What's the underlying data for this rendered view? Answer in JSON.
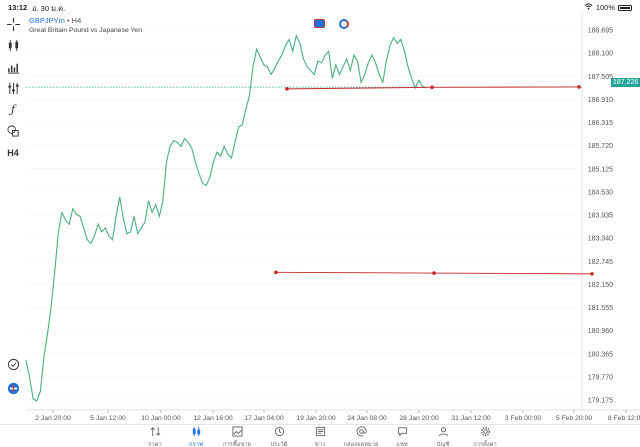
{
  "status_bar": {
    "time": "13:12",
    "date": "อ. 30 ม.ค.",
    "battery": "100%"
  },
  "chart": {
    "symbol": "GBPJPYm",
    "timeframe": "H4",
    "separator": "•",
    "description": "Great Britain Pound vs Japanese Yen",
    "current_price": "187.226",
    "timeframe_button": "H4"
  },
  "y_axis_labels": [
    "188.695",
    "188.100",
    "187.505",
    "186.910",
    "186.315",
    "185.720",
    "185.125",
    "184.530",
    "183.935",
    "183.340",
    "182.745",
    "182.150",
    "181.555",
    "180.960",
    "180.365",
    "179.770",
    "179.175"
  ],
  "x_axis_labels": [
    "2 Jan 20:00",
    "5 Jan 12:00",
    "10 Jan 00:00",
    "12 Jan 16:00",
    "17 Jan 04:00",
    "19 Jan 20:00",
    "24 Jan 08:00",
    "28 Jan 20:00",
    "31 Jan 12:00",
    "3 Feb 00:00",
    "5 Feb 20:00",
    "8 Feb 12:00"
  ],
  "chart_data": {
    "type": "line",
    "title": "",
    "ylim": [
      179.0,
      188.9
    ],
    "series": [
      {
        "color": "#4caf7d",
        "values": [
          180.2,
          179.75,
          179.2,
          179.15,
          179.4,
          180.3,
          180.9,
          181.6,
          182.5,
          183.5,
          184.0,
          183.8,
          183.7,
          184.1,
          183.95,
          183.9,
          183.6,
          183.3,
          183.2,
          183.4,
          183.7,
          183.5,
          183.6,
          183.4,
          183.3,
          183.9,
          184.4,
          183.85,
          183.45,
          183.5,
          183.9,
          183.45,
          183.6,
          183.75,
          184.3,
          184.0,
          184.2,
          183.9,
          184.3,
          185.3,
          185.7,
          185.85,
          185.8,
          185.7,
          185.9,
          185.8,
          185.65,
          185.3,
          185.0,
          184.75,
          184.7,
          184.9,
          185.3,
          185.55,
          185.45,
          185.7,
          185.5,
          185.4,
          185.8,
          186.2,
          186.25,
          186.65,
          187.0,
          187.75,
          188.2,
          188.0,
          187.8,
          187.75,
          187.55,
          187.7,
          187.9,
          188.05,
          188.3,
          188.45,
          188.15,
          188.55,
          188.35,
          187.95,
          187.75,
          187.65,
          187.55,
          187.9,
          187.85,
          188.05,
          188.15,
          187.45,
          187.8,
          187.55,
          187.75,
          187.95,
          187.65,
          188.05,
          187.9,
          187.35,
          187.55,
          187.85,
          188.05,
          187.85,
          187.55,
          187.35,
          187.9,
          188.3,
          188.5,
          188.35,
          188.45,
          188.15,
          187.75,
          187.45,
          187.2,
          187.4,
          187.25,
          187.2
        ]
      }
    ],
    "current_price_line": 187.226,
    "trend_lines": [
      {
        "color": "#c62828",
        "points": [
          [
            0,
            187.18
          ],
          [
            1,
            187.22
          ],
          [
            2,
            187.23
          ]
        ]
      },
      {
        "color": "#c62828",
        "points": [
          [
            0,
            182.46
          ],
          [
            1,
            182.44
          ],
          [
            2,
            182.42
          ]
        ]
      }
    ],
    "grid": true
  },
  "toolbar": {
    "icons": [
      "crosshair-icon",
      "candles-icon",
      "chart-type-icon",
      "indicators-icon",
      "function-icon",
      "shapes-icon",
      "timeframe-icon"
    ]
  },
  "bottom_corner_icons": [
    "zoom-check-icon",
    "app-logo-icon"
  ],
  "nav": {
    "items": [
      {
        "label": "ราคา",
        "icon": "quotes-icon",
        "active": false
      },
      {
        "label": "กราฟ",
        "icon": "chart-icon",
        "active": true
      },
      {
        "label": "การซื้อขาย",
        "icon": "trade-icon",
        "active": false
      },
      {
        "label": "ประวัติ",
        "icon": "history-icon",
        "active": false
      },
      {
        "label": "ข่าว",
        "icon": "news-icon",
        "active": false
      },
      {
        "label": "กล่องจดหมาย",
        "icon": "mailbox-icon",
        "active": false
      },
      {
        "label": "แชท",
        "icon": "chat-icon",
        "active": false
      },
      {
        "label": "บัญชี",
        "icon": "account-icon",
        "active": false
      },
      {
        "label": "การตั้งค่า",
        "icon": "settings-icon",
        "active": false
      }
    ]
  }
}
